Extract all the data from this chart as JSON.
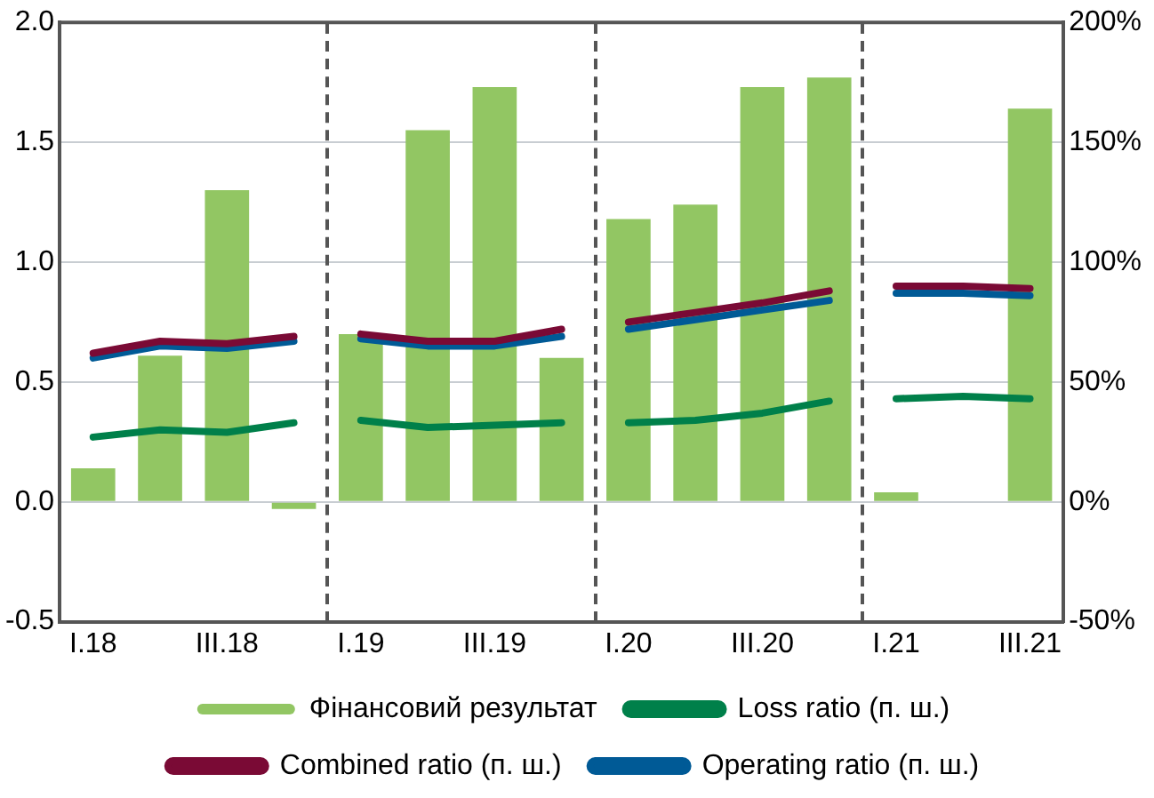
{
  "chart_data": {
    "type": "bar",
    "categories": [
      "I.18",
      null,
      "III.18",
      null,
      "I.19",
      null,
      "III.19",
      null,
      "I.20",
      null,
      "III.20",
      null,
      "I.21",
      null,
      "III.21"
    ],
    "series": [
      {
        "name": "Фінансовий результат",
        "color": "#92c663",
        "values": [
          0.14,
          0.61,
          1.3,
          -0.03,
          0.7,
          1.55,
          1.73,
          0.6,
          1.18,
          1.24,
          1.73,
          1.77,
          0.04,
          null,
          1.64
        ]
      },
      {
        "name": "Loss ratio (п. ш.)",
        "type": "line",
        "axis": "y2",
        "color": "#00804a",
        "values": [
          27,
          30,
          29,
          33,
          34,
          31,
          32,
          33,
          33,
          34,
          37,
          42,
          43,
          44,
          43
        ]
      },
      {
        "name": "Combined ratio (п. ш.)",
        "type": "line",
        "axis": "y2",
        "color": "#7a0a35",
        "values": [
          62,
          67,
          66,
          69,
          70,
          67,
          67,
          72,
          75,
          79,
          83,
          88,
          90,
          90,
          89
        ]
      },
      {
        "name": "Operating ratio (п. ш.)",
        "type": "line",
        "axis": "y2",
        "color": "#005a96",
        "values": [
          60,
          65,
          64,
          67,
          68,
          65,
          65,
          69,
          72,
          76,
          80,
          84,
          87,
          87,
          86
        ]
      }
    ],
    "ylim": [
      -0.5,
      2.0
    ],
    "yticks": [
      {
        "value": -0.5,
        "label": "-0.5"
      },
      {
        "value": 0,
        "label": "0.0"
      },
      {
        "value": 0.5,
        "label": "0.5"
      },
      {
        "value": 1,
        "label": "1.0"
      },
      {
        "value": 1.5,
        "label": "1.5"
      },
      {
        "value": 2,
        "label": "2.0"
      }
    ],
    "y2lim": [
      -50,
      200
    ],
    "y2ticks": [
      {
        "value": -50,
        "label": "-50%"
      },
      {
        "value": 0,
        "label": "0%"
      },
      {
        "value": 50,
        "label": "50%"
      },
      {
        "value": 100,
        "label": "100%"
      },
      {
        "value": 150,
        "label": "150%"
      },
      {
        "value": 200,
        "label": "200%"
      }
    ],
    "grid": "y",
    "legend": "bottom",
    "marker": "none",
    "line_style": "solid"
  }
}
